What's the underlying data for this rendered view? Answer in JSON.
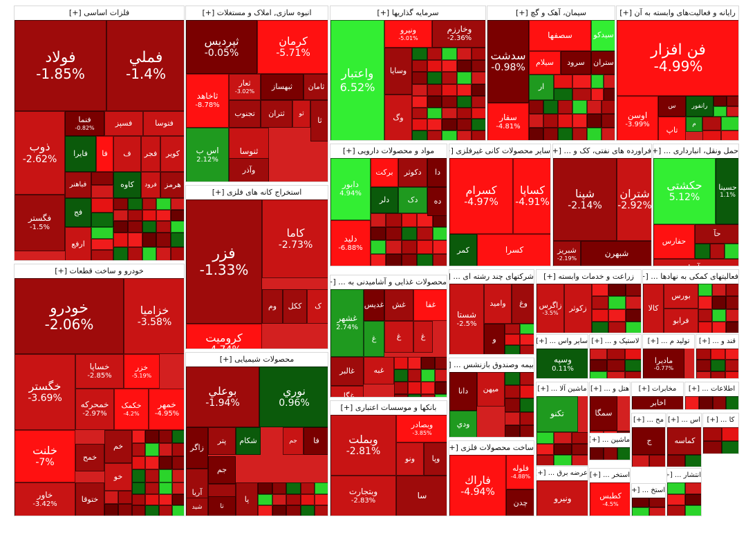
{
  "chart_data": {
    "type": "treemap",
    "color_scale": {
      "deep_red": "#7a0000",
      "dark_red": "#9e0b0b",
      "red": "#c81414",
      "bright_red": "#ff1111",
      "dark_green": "#0b5a0b",
      "green": "#1f9a1f",
      "bright_green": "#33ee33"
    },
    "sectors": [
      {
        "name": "فلزات اساسی [+]",
        "tiles": [
          {
            "symbol": "فولاد",
            "change": "-1.85%",
            "pct": -1.85
          },
          {
            "symbol": "فملي",
            "change": "-1.4%",
            "pct": -1.4
          },
          {
            "symbol": "ذوب",
            "change": "-2.62%",
            "pct": -2.62
          },
          {
            "symbol": "فنما",
            "change": "-0.82%",
            "pct": -0.82
          },
          {
            "symbol": "فسپز",
            "change": "",
            "pct": -2.5
          },
          {
            "symbol": "فتوسا",
            "change": "",
            "pct": -3.0
          },
          {
            "symbol": "فايرا",
            "change": "",
            "pct": 1.0
          },
          {
            "symbol": "فا",
            "change": "",
            "pct": -4.0
          },
          {
            "symbol": "ف",
            "change": "",
            "pct": -3.5
          },
          {
            "symbol": "فجر",
            "change": "",
            "pct": -2.8
          },
          {
            "symbol": "کویر",
            "change": "",
            "pct": -3.1
          },
          {
            "symbol": "فباهنر",
            "change": "",
            "pct": -2.2
          },
          {
            "symbol": "کاوه",
            "change": "",
            "pct": 0.4
          },
          {
            "symbol": "فرود",
            "change": "",
            "pct": -2.4
          },
          {
            "symbol": "هرمز",
            "change": "",
            "pct": -1.5
          },
          {
            "symbol": "فگستر",
            "change": "-1.5%",
            "pct": -1.5
          },
          {
            "symbol": "فج",
            "change": "",
            "pct": 1.0
          },
          {
            "symbol": "ارفع",
            "change": "",
            "pct": -3.2
          }
        ]
      },
      {
        "name": "انبوه سازی, املاک و مستغلات [+]",
        "tiles": [
          {
            "symbol": "ثپردیس",
            "change": "-0.05%",
            "pct": -0.05
          },
          {
            "symbol": "کرمان",
            "change": "-5.71%",
            "pct": -5.71
          },
          {
            "symbol": "ثاخاهد",
            "change": "-8.78%",
            "pct": -8.78
          },
          {
            "symbol": "ثعار",
            "change": "-3.02%",
            "pct": -3.02
          },
          {
            "symbol": "ثبهساز",
            "change": "",
            "pct": -1.0
          },
          {
            "symbol": "ثامان",
            "change": "",
            "pct": -1.2
          },
          {
            "symbol": "اس ب",
            "change": "2.12%",
            "pct": 2.12
          },
          {
            "symbol": "تجنوب",
            "change": "",
            "pct": -2.1
          },
          {
            "symbol": "ثتران",
            "change": "",
            "pct": -1.6
          },
          {
            "symbol": "ثو",
            "change": "",
            "pct": -3.0
          },
          {
            "symbol": "ثا",
            "change": "",
            "pct": -1.4
          },
          {
            "symbol": "ثنوسا",
            "change": "",
            "pct": -2.9
          },
          {
            "symbol": "وآذر",
            "change": "",
            "pct": -1.3
          }
        ]
      },
      {
        "name": "سرمایه گذاریها [+]",
        "tiles": [
          {
            "symbol": "واعتبار",
            "change": "6.52%",
            "pct": 6.52
          },
          {
            "symbol": "ونیرو",
            "change": "-5.01%",
            "pct": -5.01
          },
          {
            "symbol": "وخارزم",
            "change": "-2.36%",
            "pct": -2.36
          },
          {
            "symbol": "وسایا",
            "change": "",
            "pct": -1.8
          },
          {
            "symbol": "وگ",
            "change": "",
            "pct": -2.6
          }
        ]
      },
      {
        "name": "سیمان، آهک و گچ [+]",
        "tiles": [
          {
            "symbol": "سدشت",
            "change": "-0.98%",
            "pct": -0.98
          },
          {
            "symbol": "سصفها",
            "change": "",
            "pct": -4.0
          },
          {
            "symbol": "سیدکو",
            "change": "",
            "pct": 3.0
          },
          {
            "symbol": "سیلام",
            "change": "",
            "pct": -4.2
          },
          {
            "symbol": "سرود",
            "change": "",
            "pct": -0.6
          },
          {
            "symbol": "ستران",
            "change": "",
            "pct": -1.1
          },
          {
            "symbol": "ار",
            "change": "",
            "pct": 1.5
          },
          {
            "symbol": "سفار",
            "change": "-4.81%",
            "pct": -4.81
          }
        ]
      },
      {
        "name": "رایانه و فعالیت‌های وابسته به آن [+]",
        "tiles": [
          {
            "symbol": "فن افزار",
            "change": "-4.99%",
            "pct": -4.99
          },
          {
            "symbol": "اوسن",
            "change": "-3.99%",
            "pct": -3.99
          },
          {
            "symbol": "س",
            "change": "",
            "pct": -0.8
          },
          {
            "symbol": "رانفور",
            "change": "",
            "pct": 0.6
          },
          {
            "symbol": "تاپ",
            "change": "",
            "pct": -4.5
          },
          {
            "symbol": "م",
            "change": "",
            "pct": 2.0
          }
        ]
      },
      {
        "name": "خودرو و ساخت قطعات [+]",
        "tiles": [
          {
            "symbol": "خودرو",
            "change": "-2.06%",
            "pct": -2.06
          },
          {
            "symbol": "خزامیا",
            "change": "-3.58%",
            "pct": -3.58
          },
          {
            "symbol": "خگستر",
            "change": "-3.69%",
            "pct": -3.69
          },
          {
            "symbol": "خساپا",
            "change": "-2.85%",
            "pct": -2.85
          },
          {
            "symbol": "خزر",
            "change": "-5.19%",
            "pct": -5.19
          },
          {
            "symbol": "خمحرکه",
            "change": "-2.97%",
            "pct": -2.97
          },
          {
            "symbol": "خکمک",
            "change": "-4.2%",
            "pct": -4.2
          },
          {
            "symbol": "خمهر",
            "change": "-4.95%",
            "pct": -4.95
          },
          {
            "symbol": "خلنت",
            "change": "-7%",
            "pct": -7.0
          },
          {
            "symbol": "خمح",
            "change": "",
            "pct": -2.2
          },
          {
            "symbol": "خم",
            "change": "",
            "pct": -1.2
          },
          {
            "symbol": "خو",
            "change": "",
            "pct": -2.5
          },
          {
            "symbol": "خاور",
            "change": "-3.42%",
            "pct": -3.42
          },
          {
            "symbol": "ختوقا",
            "change": "",
            "pct": -1.9
          }
        ]
      },
      {
        "name": "استخراج کانه های فلزی [+]",
        "tiles": [
          {
            "symbol": "فزر",
            "change": "-1.33%",
            "pct": -1.33
          },
          {
            "symbol": "کاما",
            "change": "-2.73%",
            "pct": -2.73
          },
          {
            "symbol": "کرومیت",
            "change": "-4.74%",
            "pct": -4.74
          },
          {
            "symbol": "وم",
            "change": "",
            "pct": -1.5
          },
          {
            "symbol": "ککل",
            "change": "",
            "pct": -2.0
          },
          {
            "symbol": "ک",
            "change": "",
            "pct": -3.0
          }
        ]
      },
      {
        "name": "محصولات شیمیایی [+]",
        "tiles": [
          {
            "symbol": "بوعلي",
            "change": "-1.94%",
            "pct": -1.94
          },
          {
            "symbol": "نوري",
            "change": "0.96%",
            "pct": 0.96
          },
          {
            "symbol": "زاگر",
            "change": "",
            "pct": -0.9
          },
          {
            "symbol": "پتر",
            "change": "",
            "pct": -1.5
          },
          {
            "symbol": "شكام",
            "change": "",
            "pct": 0.3
          },
          {
            "symbol": "جم",
            "change": "",
            "pct": -2.5
          },
          {
            "symbol": "فا",
            "change": "",
            "pct": -1.0
          },
          {
            "symbol": "آريا",
            "change": "",
            "pct": -1.9
          },
          {
            "symbol": "جم",
            "change": "",
            "pct": -1.1
          },
          {
            "symbol": "پا",
            "change": "",
            "pct": -2.3
          },
          {
            "symbol": "ش",
            "change": "",
            "pct": -1.6
          },
          {
            "symbol": "شيد",
            "change": "",
            "pct": -1.2
          },
          {
            "symbol": "تا",
            "change": "",
            "pct": -0.9
          }
        ]
      },
      {
        "name": "مواد و محصولات دارویی [+]",
        "tiles": [
          {
            "symbol": "دابور",
            "change": "4.94%",
            "pct": 4.94
          },
          {
            "symbol": "برکت",
            "change": "",
            "pct": -4.0
          },
          {
            "symbol": "دکوثر",
            "change": "",
            "pct": -1.7
          },
          {
            "symbol": "دا",
            "change": "",
            "pct": -0.7
          },
          {
            "symbol": "دلر",
            "change": "",
            "pct": 0.4
          },
          {
            "symbol": "دک",
            "change": "",
            "pct": 2.5
          },
          {
            "symbol": "ده",
            "change": "",
            "pct": -0.9
          },
          {
            "symbol": "دلید",
            "change": "-6.88%",
            "pct": -6.88
          }
        ]
      },
      {
        "name": "سایر محصولات کانی غیرفلزی [+]",
        "tiles": [
          {
            "symbol": "کسرام",
            "change": "-4.97%",
            "pct": -4.97
          },
          {
            "symbol": "کساپا",
            "change": "-4.91%",
            "pct": -4.91
          },
          {
            "symbol": "کمر",
            "change": "",
            "pct": 0.8
          },
          {
            "symbol": "کسرا",
            "change": "",
            "pct": -4.4
          }
        ]
      },
      {
        "name": "فراورده های نفتی، کک و ... [+]",
        "tiles": [
          {
            "symbol": "شپنا",
            "change": "-2.14%",
            "pct": -2.14
          },
          {
            "symbol": "شتران",
            "change": "-2.92%",
            "pct": -2.92
          },
          {
            "symbol": "شبریز",
            "change": "-2.19%",
            "pct": -2.19
          },
          {
            "symbol": "شبهرن",
            "change": "",
            "pct": -1.0
          }
        ]
      },
      {
        "name": "حمل ونقل، انبارداری ... [+]",
        "tiles": [
          {
            "symbol": "حکشتی",
            "change": "5.12%",
            "pct": 5.12
          },
          {
            "symbol": "حسینا",
            "change": "1.1%",
            "pct": 1.1
          },
          {
            "symbol": "حفارس",
            "change": "",
            "pct": -3.8
          },
          {
            "symbol": "حآ",
            "change": "",
            "pct": -2.0
          },
          {
            "symbol": "حآسا",
            "change": "",
            "pct": -3.2
          }
        ]
      },
      {
        "name": "محصولات غذایی و آشامیدنی به ... [+]",
        "tiles": [
          {
            "symbol": "غشهر",
            "change": "2.74%",
            "pct": 2.74
          },
          {
            "symbol": "غدیس",
            "change": "",
            "pct": -0.8
          },
          {
            "symbol": "غش",
            "change": "",
            "pct": -1.8
          },
          {
            "symbol": "غفا",
            "change": "",
            "pct": -4.2
          },
          {
            "symbol": "غ",
            "change": "",
            "pct": 1.6
          },
          {
            "symbol": "غ",
            "change": "",
            "pct": -3.0
          },
          {
            "symbol": "غ",
            "change": "",
            "pct": -2.7
          },
          {
            "symbol": "غالبر",
            "change": "",
            "pct": -1.7
          },
          {
            "symbol": "غبه",
            "change": "",
            "pct": -3.6
          },
          {
            "symbol": "غگل",
            "change": "",
            "pct": -3.0
          }
        ]
      },
      {
        "name": "شرکتهای چند رشته ای ... [+]",
        "tiles": [
          {
            "symbol": "شستا",
            "change": "-2.5%",
            "pct": -2.5
          },
          {
            "symbol": "وامید",
            "change": "",
            "pct": -3.2
          },
          {
            "symbol": "وغ",
            "change": "",
            "pct": -1.4
          },
          {
            "symbol": "و",
            "change": "",
            "pct": -1.0
          }
        ]
      },
      {
        "name": "زراعت و خدمات وابسته [+]",
        "tiles": [
          {
            "symbol": "زاگرس",
            "change": "-3.5%",
            "pct": -3.5
          },
          {
            "symbol": "زکوثر",
            "change": "",
            "pct": -2.6
          }
        ]
      },
      {
        "name": "فعالیتهای کمکی به نهادها ... [+]",
        "tiles": [
          {
            "symbol": "کالا",
            "change": "",
            "pct": -3.4
          },
          {
            "symbol": "بورس",
            "change": "",
            "pct": -2.4
          },
          {
            "symbol": "فرابو",
            "change": "",
            "pct": -2.9
          }
        ]
      },
      {
        "name": "سایر واس ... [+]",
        "tiles": [
          {
            "symbol": "وسپه",
            "change": "0.11%",
            "pct": 0.11
          }
        ]
      },
      {
        "name": "لاستیک و ... [+]",
        "tiles": []
      },
      {
        "name": "تولید م ... [+]",
        "tiles": [
          {
            "symbol": "مادیرا",
            "change": "-0.77%",
            "pct": -0.77
          }
        ]
      },
      {
        "name": "قند و ... [+]",
        "tiles": []
      },
      {
        "name": "بیمه وصندوق بازنشس ... [+]",
        "tiles": [
          {
            "symbol": "دانا",
            "change": "",
            "pct": -1.0
          },
          {
            "symbol": "میهن",
            "change": "",
            "pct": -3.2
          },
          {
            "symbol": "ودي",
            "change": "",
            "pct": 2.8
          }
        ]
      },
      {
        "name": "هتل و ... [+]",
        "tiles": [
          {
            "symbol": "سمگا",
            "change": "",
            "pct": -1.1
          }
        ]
      },
      {
        "name": "مخابرات [+]",
        "tiles": [
          {
            "symbol": "اخابر",
            "change": "",
            "pct": -1.0
          }
        ]
      },
      {
        "name": "اطلاعات ... [+]",
        "tiles": []
      },
      {
        "name": "ماشین آلا ... [+]",
        "tiles": [
          {
            "symbol": "تكنو",
            "change": "",
            "pct": 1.5
          }
        ]
      },
      {
        "name": "ماشین ... [+]",
        "tiles": []
      },
      {
        "name": "مح ... [+]",
        "tiles": [
          {
            "symbol": "ج",
            "change": "",
            "pct": -0.9
          }
        ]
      },
      {
        "name": "اس ... [+]",
        "tiles": [
          {
            "symbol": "کماسه",
            "change": "",
            "pct": -1.2
          }
        ]
      },
      {
        "name": "کا ... [+]",
        "tiles": []
      },
      {
        "name": "بانکها و موسسات اعتباری [+]",
        "tiles": [
          {
            "symbol": "وبملت",
            "change": "-2.81%",
            "pct": -2.81
          },
          {
            "symbol": "وبصادر",
            "change": "-3.85%",
            "pct": -3.85
          },
          {
            "symbol": "ونو",
            "change": "",
            "pct": -2.8
          },
          {
            "symbol": "وپا",
            "change": "",
            "pct": -1.7
          },
          {
            "symbol": "وبتجارت",
            "change": "-2.83%",
            "pct": -2.83
          },
          {
            "symbol": "سا",
            "change": "",
            "pct": -2.1
          }
        ]
      },
      {
        "name": "ساخت محصولات فلزی [+]",
        "tiles": [
          {
            "symbol": "فاراك",
            "change": "-4.94%",
            "pct": -4.94
          },
          {
            "symbol": "فلوله",
            "change": "-4.88%",
            "pct": -4.88
          },
          {
            "symbol": "چدن",
            "change": "",
            "pct": -1.0
          }
        ]
      },
      {
        "name": "عرضه برق ... [+]",
        "tiles": [
          {
            "symbol": "ونیرو",
            "change": "",
            "pct": -3.6
          }
        ]
      },
      {
        "name": "استخر ... [+]",
        "tiles": [
          {
            "symbol": "کطبس",
            "change": "-4.5%",
            "pct": -4.5
          }
        ]
      },
      {
        "name": "انتشار ... [+]",
        "tiles": []
      },
      {
        "name": "استخ ... [+]",
        "tiles": []
      }
    ]
  }
}
